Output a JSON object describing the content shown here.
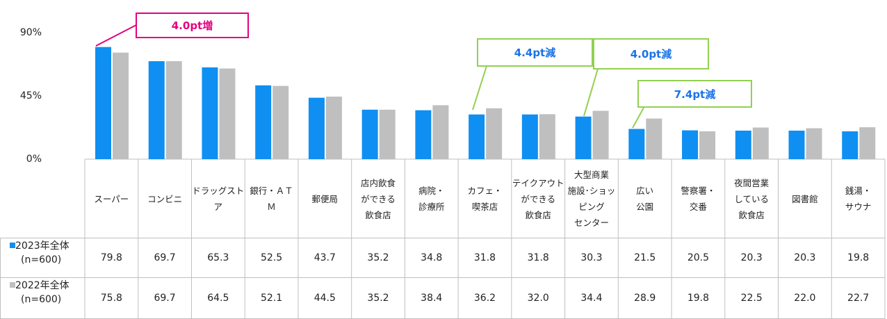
{
  "chart_data": {
    "type": "bar",
    "categories": [
      "スーパー",
      "コンビニ",
      "ドラッグスト\nア",
      "銀行・ＡＴ\nＭ",
      "郵便局",
      "店内飲食\nができる\n飲食店",
      "病院・\n診療所",
      "カフェ・\n喫茶店",
      "テイクアウト\nができる\n飲食店",
      "大型商業\n施設･ショッ\nピング\nセンター",
      "広い\n公園",
      "警察署・\n交番",
      "夜間営業\nしている\n飲食店",
      "図書館",
      "銭湯・\nサウナ"
    ],
    "series": [
      {
        "name": "2023年全体",
        "sample": "(n=600)",
        "color": "#0f8ff2",
        "values": [
          79.8,
          69.7,
          65.3,
          52.5,
          43.7,
          35.2,
          34.8,
          31.8,
          31.8,
          30.3,
          21.5,
          20.5,
          20.3,
          20.3,
          19.8
        ],
        "value_labels": [
          "79.8",
          "69.7",
          "65.3",
          "52.5",
          "43.7",
          "35.2",
          "34.8",
          "31.8",
          "31.8",
          "30.3",
          "21.5",
          "20.5",
          "20.3",
          "20.3",
          "19.8"
        ]
      },
      {
        "name": "2022年全体",
        "sample": "(n=600)",
        "color": "#bfbfbf",
        "values": [
          75.8,
          69.7,
          64.5,
          52.1,
          44.5,
          35.2,
          38.4,
          36.2,
          32.0,
          34.4,
          28.9,
          19.8,
          22.5,
          22.0,
          22.7
        ],
        "value_labels": [
          "75.8",
          "69.7",
          "64.5",
          "52.1",
          "44.5",
          "35.2",
          "38.4",
          "36.2",
          "32.0",
          "34.4",
          "28.9",
          "19.8",
          "22.5",
          "22.0",
          "22.7"
        ]
      }
    ],
    "ylim": [
      0,
      90
    ],
    "yticks": [
      {
        "value": 0,
        "label": "0%"
      },
      {
        "value": 45,
        "label": "45%"
      },
      {
        "value": 90,
        "label": "90%"
      }
    ],
    "annotations": [
      {
        "text": "4.0pt増",
        "color": "#e4007f"
      },
      {
        "text": "4.4pt減",
        "color": "#92d050"
      },
      {
        "text": "4.0pt減",
        "color": "#92d050"
      },
      {
        "text": "7.4pt減",
        "color": "#92d050"
      }
    ]
  }
}
